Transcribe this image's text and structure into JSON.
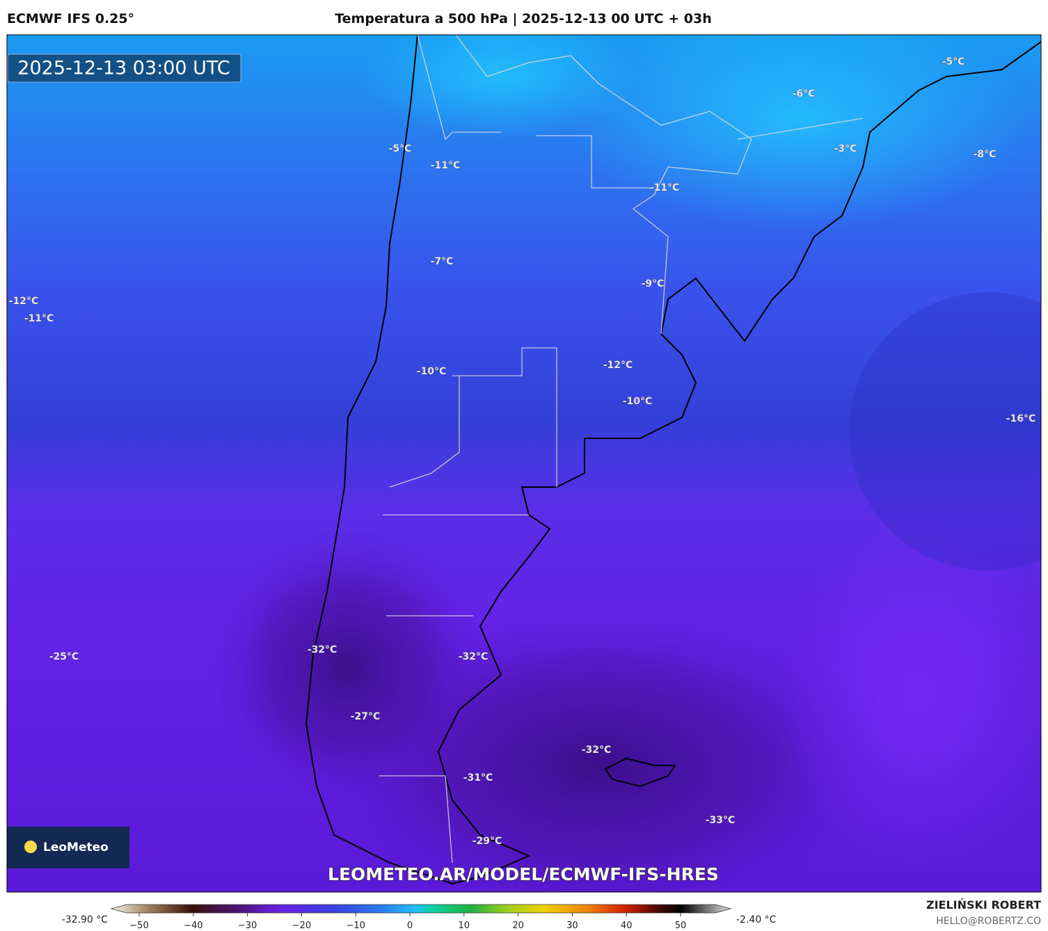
{
  "header": {
    "model": "ECMWF IFS 0.25°",
    "title": "Temperatura a 500 hPa | 2025-12-13 00 UTC + 03h"
  },
  "map": {
    "timestamp": "2025-12-13 03:00 UTC",
    "labels": [
      "-5°C",
      "-11°C",
      "-11°C",
      "-5°C",
      "-6°C",
      "-3°C",
      "-8°C",
      "-7°C",
      "-9°C",
      "-12°C",
      "-11°C",
      "-10°C",
      "-12°C",
      "-10°C",
      "-16°C",
      "-25°C",
      "-32°C",
      "-32°C",
      "-27°C",
      "-32°C",
      "-31°C",
      "-33°C",
      "-29°C"
    ],
    "logo": "LeoMeteo",
    "url": "LEOMETEO.AR/MODEL/ECMWF-IFS-HRES"
  },
  "colorbar": {
    "min_label": "-32.90 °C",
    "max_label": "-2.40 °C",
    "ticks": [
      "−50",
      "−40",
      "−30",
      "−20",
      "−10",
      "0",
      "10",
      "20",
      "30",
      "40",
      "50"
    ]
  },
  "credits": {
    "author": "ZIELIŃSKI ROBERT",
    "email": "HELLO@ROBERTZ.CO"
  }
}
